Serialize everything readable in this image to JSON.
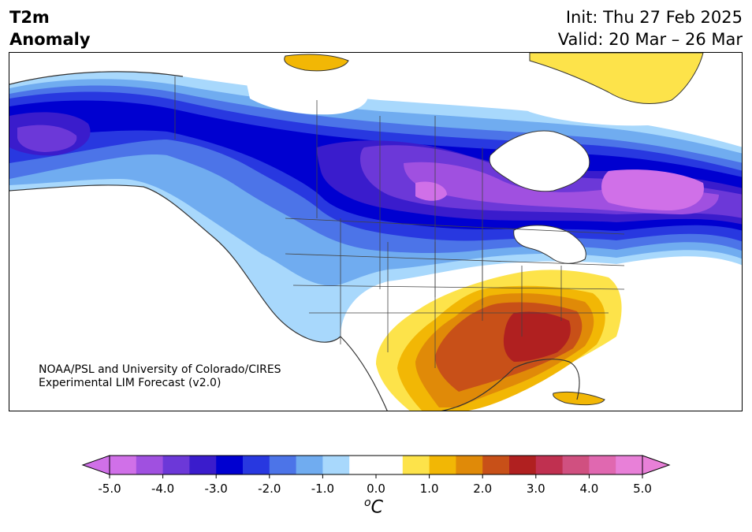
{
  "title": {
    "left_line1": "T2m",
    "left_line2": "Anomaly",
    "init": "Init: Thu 27 Feb 2025",
    "valid": "Valid: 20 Mar – 26 Mar"
  },
  "credit": {
    "line1": "NOAA/PSL and University of Colorado/CIRES",
    "line2": "Experimental LIM Forecast (v2.0)"
  },
  "colorbar": {
    "units_base": "C",
    "units_sup": "o",
    "ticks": [
      "-5.0",
      "-4.0",
      "-3.0",
      "-2.0",
      "-1.0",
      "0.0",
      "1.0",
      "2.0",
      "3.0",
      "4.0",
      "5.0"
    ],
    "range": [
      -5.0,
      5.0
    ],
    "step": 0.5,
    "colors": [
      "#d070e8",
      "#a050e0",
      "#6c38d8",
      "#3a1ccc",
      "#0000d0",
      "#2838e0",
      "#4c74e8",
      "#70acf0",
      "#a8d8fc",
      "#ffffff",
      "#ffffff",
      "#fde34a",
      "#f2b705",
      "#e08a08",
      "#c85018",
      "#b02020",
      "#c03050",
      "#d05080",
      "#e068b0",
      "#e880d8"
    ],
    "under_color": "#d070e8",
    "over_color": "#e880d8"
  },
  "map": {
    "region": "North America",
    "projection": "Lambert conformal",
    "colors": {
      "land_outline": "#333333",
      "water": "#ffffff"
    }
  }
}
